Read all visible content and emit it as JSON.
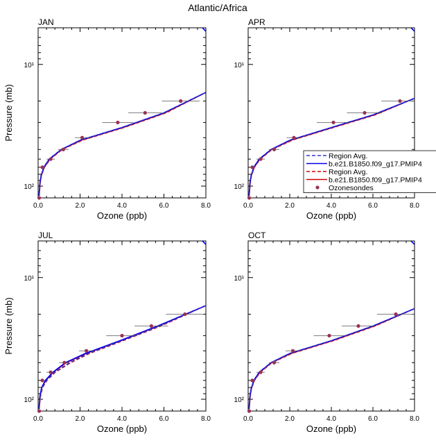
{
  "figure": {
    "title": "Atlantic/Africa"
  },
  "chart_data": [
    {
      "type": "line",
      "panel_label": "JAN",
      "xlabel": "Ozone (ppb)",
      "ylabel": "Pressure (mb)",
      "xlim": [
        0,
        8
      ],
      "ylim": [
        125,
        5
      ],
      "y_scale": "log-reversed",
      "x_ticks": [
        "0.0",
        "2.0",
        "4.0",
        "6.0",
        "8.0"
      ],
      "y_ticks": [
        "10¹",
        "10²"
      ],
      "series": [
        {
          "name": "Region Avg.",
          "color": "#3333cc",
          "dash": "dashed",
          "x": [
            0.05,
            0.09,
            0.15,
            0.28,
            0.55,
            1.1,
            2.0,
            4.0,
            6.0,
            8.0
          ],
          "y": [
            120,
            95,
            82,
            70,
            60,
            50,
            42,
            33,
            25,
            17
          ]
        },
        {
          "name": "b.e21.B1850.f09_g17.PMIP4",
          "color": "#0000ee",
          "dash": "solid",
          "x": [
            0.04,
            0.08,
            0.14,
            0.27,
            0.53,
            1.1,
            2.0,
            4.0,
            6.0,
            8.0
          ],
          "y": [
            120,
            95,
            82,
            70,
            60,
            50,
            42,
            33,
            25,
            17
          ]
        },
        {
          "name": "Region Avg.",
          "color": "#cc0000",
          "dash": "dashed",
          "x": [
            0.05,
            0.1,
            0.16,
            0.3,
            0.58,
            1.15,
            2.1,
            4.1,
            6.1,
            8.0
          ],
          "y": [
            120,
            95,
            82,
            70,
            60,
            50,
            42,
            33,
            25,
            17
          ]
        },
        {
          "name": "b.e21.B1850.f09_g17.PMIP4",
          "color": "#cc0000",
          "dash": "solid",
          "x": [
            0.05,
            0.09,
            0.15,
            0.29,
            0.56,
            1.12,
            2.05,
            4.05,
            6.05,
            8.0
          ],
          "y": [
            120,
            95,
            82,
            70,
            60,
            50,
            42,
            33,
            25,
            17
          ]
        }
      ],
      "points": {
        "name": "Ozonesondes",
        "color": "#993355",
        "x": [
          0.05,
          0.2,
          0.6,
          1.2,
          2.1,
          3.8,
          5.1,
          6.8
        ],
        "y": [
          125,
          70,
          60,
          50,
          40,
          30,
          25,
          20
        ],
        "err": [
          0.05,
          0.1,
          0.2,
          0.25,
          0.35,
          0.75,
          0.8,
          0.9
        ]
      }
    },
    {
      "type": "line",
      "panel_label": "APR",
      "xlabel": "Ozone (ppb)",
      "ylabel": "",
      "xlim": [
        0,
        8
      ],
      "ylim": [
        125,
        5
      ],
      "y_scale": "log-reversed",
      "x_ticks": [
        "0.0",
        "2.0",
        "4.0",
        "6.0",
        "8.0"
      ],
      "y_ticks": [
        "10¹",
        "10²"
      ],
      "series": [
        {
          "name": "Region Avg.",
          "color": "#3333cc",
          "dash": "dashed",
          "x": [
            0.04,
            0.09,
            0.15,
            0.28,
            0.55,
            1.1,
            2.0,
            4.0,
            6.0,
            8.0
          ],
          "y": [
            120,
            95,
            82,
            70,
            60,
            50,
            42,
            33,
            26,
            19
          ]
        },
        {
          "name": "b.e21.B1850.f09_g17.PMIP4",
          "color": "#0000ee",
          "dash": "solid",
          "x": [
            0.04,
            0.08,
            0.14,
            0.27,
            0.53,
            1.1,
            2.0,
            4.0,
            6.0,
            8.0
          ],
          "y": [
            120,
            95,
            82,
            70,
            60,
            50,
            42,
            33,
            26,
            19
          ]
        },
        {
          "name": "Region Avg.",
          "color": "#cc0000",
          "dash": "dashed",
          "x": [
            0.05,
            0.1,
            0.16,
            0.3,
            0.58,
            1.15,
            2.1,
            4.1,
            6.1,
            8.0
          ],
          "y": [
            120,
            95,
            82,
            70,
            60,
            50,
            42,
            33,
            26,
            19
          ]
        },
        {
          "name": "b.e21.B1850.f09_g17.PMIP4",
          "color": "#cc0000",
          "dash": "solid",
          "x": [
            0.05,
            0.09,
            0.15,
            0.29,
            0.56,
            1.12,
            2.05,
            4.05,
            6.05,
            8.0
          ],
          "y": [
            120,
            95,
            82,
            70,
            60,
            50,
            42,
            33,
            26,
            19
          ]
        }
      ],
      "points": {
        "name": "Ozonesondes",
        "color": "#993355",
        "x": [
          0.05,
          0.2,
          0.6,
          1.25,
          2.2,
          4.1,
          5.6,
          7.3
        ],
        "y": [
          125,
          70,
          60,
          50,
          40,
          30,
          25,
          20
        ],
        "err": [
          0.05,
          0.1,
          0.2,
          0.25,
          0.35,
          0.8,
          0.85,
          0.9
        ]
      }
    },
    {
      "type": "line",
      "panel_label": "JUL",
      "xlabel": "Ozone (ppb)",
      "ylabel": "Pressure (mb)",
      "xlim": [
        0,
        8
      ],
      "ylim": [
        125,
        5
      ],
      "y_scale": "log-reversed",
      "x_ticks": [
        "0.0",
        "2.0",
        "4.0",
        "6.0",
        "8.0"
      ],
      "y_ticks": [
        "10¹",
        "10²"
      ],
      "series": [
        {
          "name": "Region Avg.",
          "color": "#3333cc",
          "dash": "dashed",
          "x": [
            0.04,
            0.1,
            0.2,
            0.4,
            0.8,
            1.5,
            2.4,
            4.0,
            5.8,
            8.0
          ],
          "y": [
            120,
            95,
            80,
            70,
            60,
            50,
            42,
            33,
            25,
            17
          ]
        },
        {
          "name": "b.e21.B1850.f09_g17.PMIP4",
          "color": "#0000ee",
          "dash": "solid",
          "x": [
            0.04,
            0.08,
            0.17,
            0.34,
            0.7,
            1.3,
            2.25,
            3.9,
            5.7,
            8.0
          ],
          "y": [
            120,
            95,
            80,
            70,
            60,
            50,
            42,
            33,
            25,
            17
          ]
        },
        {
          "name": "Region Avg.",
          "color": "#cc0000",
          "dash": "dashed",
          "x": [
            0.05,
            0.11,
            0.21,
            0.42,
            0.82,
            1.55,
            2.45,
            4.05,
            5.85,
            8.0
          ],
          "y": [
            120,
            95,
            80,
            70,
            60,
            50,
            42,
            33,
            25,
            17
          ]
        },
        {
          "name": "b.e21.B1850.f09_g17.PMIP4",
          "color": "#cc0000",
          "dash": "solid",
          "x": [
            0.05,
            0.09,
            0.18,
            0.36,
            0.72,
            1.35,
            2.3,
            3.95,
            5.75,
            8.0
          ],
          "y": [
            120,
            95,
            80,
            70,
            60,
            50,
            42,
            33,
            25,
            17
          ]
        }
      ],
      "points": {
        "name": "Ozonesondes",
        "color": "#993355",
        "x": [
          0.05,
          0.2,
          0.6,
          1.25,
          2.3,
          4.0,
          5.4,
          7.0
        ],
        "y": [
          125,
          70,
          60,
          50,
          40,
          30,
          25,
          20
        ],
        "err": [
          0.05,
          0.1,
          0.2,
          0.25,
          0.35,
          0.75,
          0.8,
          0.9
        ]
      }
    },
    {
      "type": "line",
      "panel_label": "OCT",
      "xlabel": "Ozone (ppb)",
      "ylabel": "",
      "xlim": [
        0,
        8
      ],
      "ylim": [
        125,
        5
      ],
      "y_scale": "log-reversed",
      "x_ticks": [
        "0.0",
        "2.0",
        "4.0",
        "6.0",
        "8.0"
      ],
      "y_ticks": [
        "10¹",
        "10²"
      ],
      "series": [
        {
          "name": "Region Avg.",
          "color": "#3333cc",
          "dash": "dashed",
          "x": [
            0.04,
            0.09,
            0.15,
            0.28,
            0.55,
            1.1,
            2.0,
            4.0,
            6.0,
            8.0
          ],
          "y": [
            120,
            95,
            82,
            70,
            60,
            50,
            42,
            33,
            25,
            18
          ]
        },
        {
          "name": "b.e21.B1850.f09_g17.PMIP4",
          "color": "#0000ee",
          "dash": "solid",
          "x": [
            0.04,
            0.08,
            0.14,
            0.27,
            0.53,
            1.1,
            2.0,
            4.0,
            6.0,
            8.0
          ],
          "y": [
            120,
            95,
            82,
            70,
            60,
            50,
            42,
            33,
            25,
            18
          ]
        },
        {
          "name": "Region Avg.",
          "color": "#cc0000",
          "dash": "dashed",
          "x": [
            0.05,
            0.1,
            0.16,
            0.3,
            0.58,
            1.15,
            2.1,
            4.1,
            6.1,
            8.0
          ],
          "y": [
            120,
            95,
            82,
            70,
            60,
            50,
            42,
            33,
            25,
            18
          ]
        },
        {
          "name": "b.e21.B1850.f09_g17.PMIP4",
          "color": "#cc0000",
          "dash": "solid",
          "x": [
            0.05,
            0.09,
            0.15,
            0.29,
            0.56,
            1.12,
            2.05,
            4.05,
            6.05,
            8.0
          ],
          "y": [
            120,
            95,
            82,
            70,
            60,
            50,
            42,
            33,
            25,
            18
          ]
        }
      ],
      "points": {
        "name": "Ozonesondes",
        "color": "#993355",
        "x": [
          0.05,
          0.2,
          0.6,
          1.25,
          2.15,
          3.9,
          5.3,
          7.1
        ],
        "y": [
          125,
          70,
          60,
          50,
          40,
          30,
          25,
          20
        ],
        "err": [
          0.05,
          0.1,
          0.2,
          0.25,
          0.35,
          0.75,
          0.8,
          0.9
        ]
      }
    }
  ],
  "legend": {
    "placement": "right-middle",
    "entries": [
      {
        "label": "Region Avg.",
        "color": "#3333cc",
        "style": "dashed"
      },
      {
        "label": "b.e21.B1850.f09_g17.PMIP4",
        "color": "#0000ee",
        "style": "solid"
      },
      {
        "label": "Region Avg.",
        "color": "#cc0000",
        "style": "dashed"
      },
      {
        "label": "b.e21.B1850.f09_g17.PMIP4",
        "color": "#cc0000",
        "style": "solid"
      },
      {
        "label": "Ozonesondes",
        "color": "#993355",
        "style": "marker"
      }
    ]
  }
}
